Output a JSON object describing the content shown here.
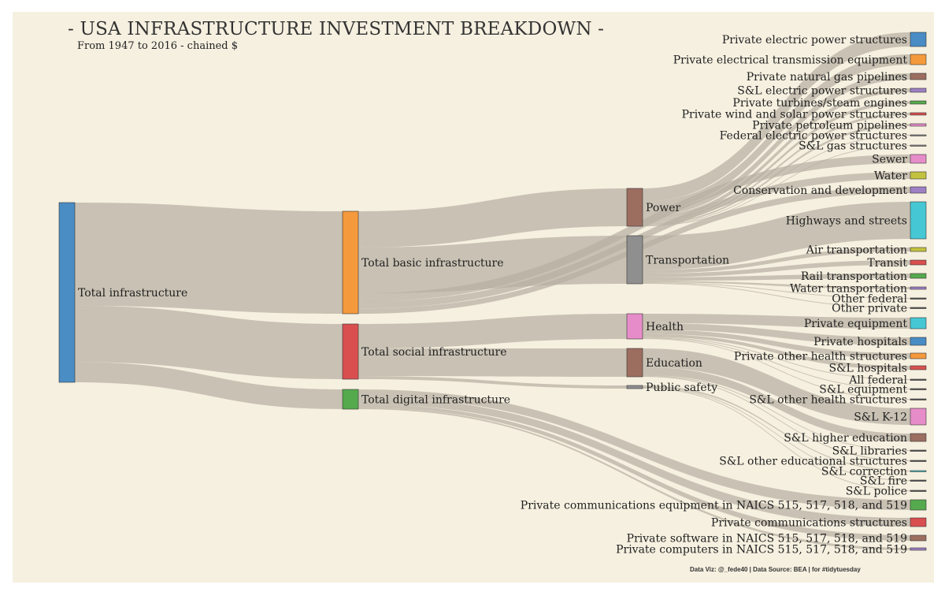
{
  "title": "- USA INFRASTRUCTURE INVESTMENT BREAKDOWN -",
  "subtitle": "From 1947 to 2016 - chained $",
  "caption": "Data Viz: @_fede40 | Data Source: BEA | for #tidytuesday",
  "chart_data": {
    "type": "sankey",
    "nodes": [
      {
        "id": "total",
        "label": "Total infrastructure",
        "color": "#4a8cc4"
      },
      {
        "id": "basic",
        "label": "Total basic infrastructure",
        "color": "#f59a3c"
      },
      {
        "id": "social",
        "label": "Total social infrastructure",
        "color": "#d94f4f"
      },
      {
        "id": "digital",
        "label": "Total digital infrastructure",
        "color": "#55aa4d"
      },
      {
        "id": "power",
        "label": "Power",
        "color": "#9c6e60"
      },
      {
        "id": "transport",
        "label": "Transportation",
        "color": "#8f8f8f"
      },
      {
        "id": "health",
        "label": "Health",
        "color": "#e68dc9"
      },
      {
        "id": "education",
        "label": "Education",
        "color": "#9c6e60"
      },
      {
        "id": "safety",
        "label": "Public safety",
        "color": "#8f8f8f"
      },
      {
        "id": "l_pep",
        "label": "Private electric power structures",
        "color": "#4a8cc4"
      },
      {
        "id": "l_pet",
        "label": "Private electrical transmission equipment",
        "color": "#f59a3c"
      },
      {
        "id": "l_pngp",
        "label": "Private natural gas pipelines",
        "color": "#9c6e60"
      },
      {
        "id": "l_slep",
        "label": "S&L electric power structures",
        "color": "#9e80c4"
      },
      {
        "id": "l_ptse",
        "label": "Private turbines/steam engines",
        "color": "#55aa4d"
      },
      {
        "id": "l_pwsp",
        "label": "Private wind and solar power structures",
        "color": "#d94f4f"
      },
      {
        "id": "l_ppp",
        "label": "Private petroleum pipelines",
        "color": "#e68dc9"
      },
      {
        "id": "l_fepp",
        "label": "Federal electric power structures",
        "color": "#8f8f8f"
      },
      {
        "id": "l_slgs",
        "label": "S&L gas structures",
        "color": "#8f8f8f"
      },
      {
        "id": "l_sewer",
        "label": "Sewer",
        "color": "#e68dc9"
      },
      {
        "id": "l_water",
        "label": "Water",
        "color": "#c3c23f"
      },
      {
        "id": "l_cons",
        "label": "Conservation and development",
        "color": "#9e80c4"
      },
      {
        "id": "l_hwy",
        "label": "Highways and streets",
        "color": "#46c8d4"
      },
      {
        "id": "l_air",
        "label": "Air transportation",
        "color": "#c3c23f"
      },
      {
        "id": "l_transit",
        "label": "Transit",
        "color": "#d94f4f"
      },
      {
        "id": "l_rail",
        "label": "Rail transportation",
        "color": "#55aa4d"
      },
      {
        "id": "l_wtr",
        "label": "Water transportation",
        "color": "#9e80c4"
      },
      {
        "id": "l_ofed",
        "label": "Other federal",
        "color": "#555555"
      },
      {
        "id": "l_opriv",
        "label": "Other private",
        "color": "#555555"
      },
      {
        "id": "l_peq",
        "label": "Private equipment",
        "color": "#46c8d4"
      },
      {
        "id": "l_phosp",
        "label": "Private hospitals",
        "color": "#4a8cc4"
      },
      {
        "id": "l_pohs",
        "label": "Private other health structures",
        "color": "#f59a3c"
      },
      {
        "id": "l_slhosp",
        "label": "S&L hospitals",
        "color": "#d94f4f"
      },
      {
        "id": "l_allfed",
        "label": "All federal",
        "color": "#555555"
      },
      {
        "id": "l_sleq",
        "label": "S&L equipment",
        "color": "#555555"
      },
      {
        "id": "l_slohs",
        "label": "S&L other health structures",
        "color": "#555555"
      },
      {
        "id": "l_k12",
        "label": "S&L K-12",
        "color": "#e68dc9"
      },
      {
        "id": "l_slhe",
        "label": "S&L higher education",
        "color": "#9c6e60"
      },
      {
        "id": "l_sllib",
        "label": "S&L libraries",
        "color": "#555555"
      },
      {
        "id": "l_sloes",
        "label": "S&L other educational structures",
        "color": "#555555"
      },
      {
        "id": "l_slcorr",
        "label": "S&L correction",
        "color": "#46c8d4"
      },
      {
        "id": "l_slfire",
        "label": "S&L fire",
        "color": "#555555"
      },
      {
        "id": "l_slpol",
        "label": "S&L police",
        "color": "#555555"
      },
      {
        "id": "l_pce",
        "label": "Private communications equipment in NAICS 515, 517, 518, and 519",
        "color": "#55aa4d"
      },
      {
        "id": "l_pcs",
        "label": "Private communications structures",
        "color": "#d94f4f"
      },
      {
        "id": "l_psw",
        "label": "Private software in NAICS 515, 517, 518, and 519",
        "color": "#9c6e60"
      },
      {
        "id": "l_pcomp",
        "label": "Private computers in NAICS 515, 517, 518, and 519",
        "color": "#9e80c4"
      }
    ],
    "links": [
      {
        "source": "total",
        "target": "basic",
        "value": 132
      },
      {
        "source": "total",
        "target": "social",
        "value": 72
      },
      {
        "source": "total",
        "target": "digital",
        "value": 26
      },
      {
        "source": "basic",
        "target": "power",
        "value": 48
      },
      {
        "source": "basic",
        "target": "transport",
        "value": 61
      },
      {
        "source": "basic",
        "target": "l_sewer",
        "value": 11
      },
      {
        "source": "basic",
        "target": "l_water",
        "value": 9
      },
      {
        "source": "basic",
        "target": "l_cons",
        "value": 7
      },
      {
        "source": "social",
        "target": "health",
        "value": 32
      },
      {
        "source": "social",
        "target": "education",
        "value": 36
      },
      {
        "source": "social",
        "target": "safety",
        "value": 4
      },
      {
        "source": "digital",
        "target": "l_pce",
        "value": 11
      },
      {
        "source": "digital",
        "target": "l_pcs",
        "value": 10
      },
      {
        "source": "digital",
        "target": "l_psw",
        "value": 5
      },
      {
        "source": "digital",
        "target": "l_pcomp",
        "value": 2
      },
      {
        "source": "power",
        "target": "l_pep",
        "value": 18
      },
      {
        "source": "power",
        "target": "l_pet",
        "value": 12
      },
      {
        "source": "power",
        "target": "l_pngp",
        "value": 8
      },
      {
        "source": "power",
        "target": "l_slep",
        "value": 5
      },
      {
        "source": "power",
        "target": "l_ptse",
        "value": 3
      },
      {
        "source": "power",
        "target": "l_pwsp",
        "value": 2
      },
      {
        "source": "power",
        "target": "l_ppp",
        "value": 2
      },
      {
        "source": "power",
        "target": "l_fepp",
        "value": 1
      },
      {
        "source": "power",
        "target": "l_slgs",
        "value": 1
      },
      {
        "source": "transport",
        "target": "l_hwy",
        "value": 47
      },
      {
        "source": "transport",
        "target": "l_air",
        "value": 5
      },
      {
        "source": "transport",
        "target": "l_transit",
        "value": 5
      },
      {
        "source": "transport",
        "target": "l_rail",
        "value": 5
      },
      {
        "source": "transport",
        "target": "l_wtr",
        "value": 2
      },
      {
        "source": "transport",
        "target": "l_ofed",
        "value": 1
      },
      {
        "source": "transport",
        "target": "l_opriv",
        "value": 1
      },
      {
        "source": "health",
        "target": "l_peq",
        "value": 13
      },
      {
        "source": "health",
        "target": "l_phosp",
        "value": 9
      },
      {
        "source": "health",
        "target": "l_pohs",
        "value": 6
      },
      {
        "source": "health",
        "target": "l_slhosp",
        "value": 4
      },
      {
        "source": "health",
        "target": "l_allfed",
        "value": 1
      },
      {
        "source": "health",
        "target": "l_sleq",
        "value": 1
      },
      {
        "source": "health",
        "target": "l_slohs",
        "value": 1
      },
      {
        "source": "education",
        "target": "l_k12",
        "value": 21
      },
      {
        "source": "education",
        "target": "l_slhe",
        "value": 9
      },
      {
        "source": "education",
        "target": "l_sllib",
        "value": 1
      },
      {
        "source": "education",
        "target": "l_sloes",
        "value": 1
      },
      {
        "source": "safety",
        "target": "l_slcorr",
        "value": 2
      },
      {
        "source": "safety",
        "target": "l_slfire",
        "value": 1
      },
      {
        "source": "safety",
        "target": "l_slpol",
        "value": 1
      }
    ]
  }
}
